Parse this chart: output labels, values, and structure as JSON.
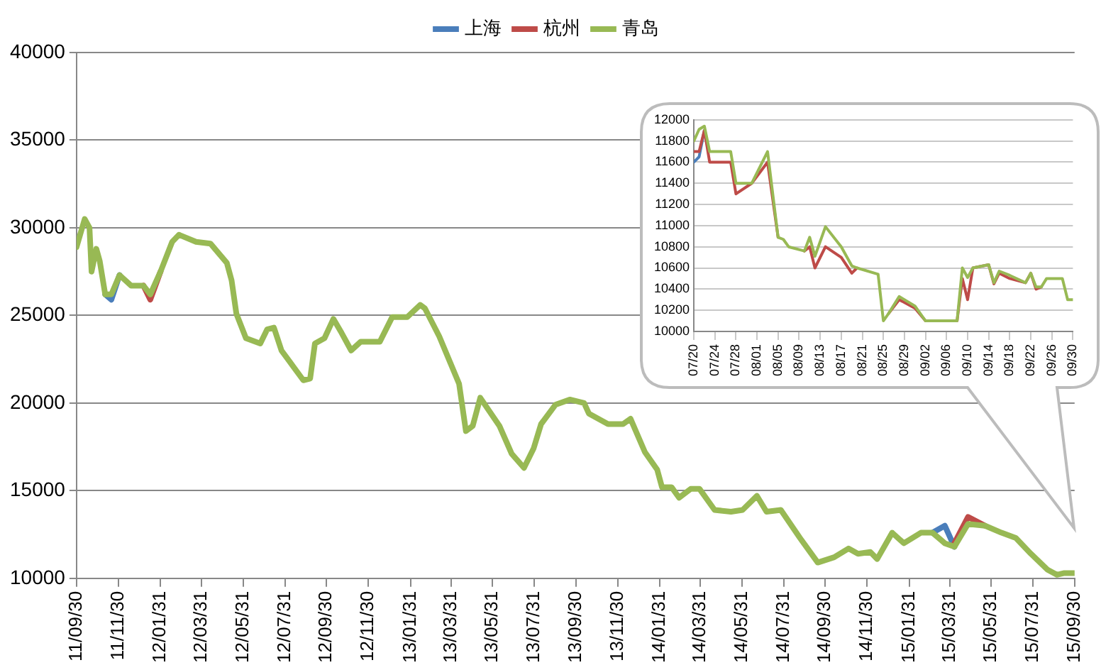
{
  "chart_data": [
    {
      "type": "line",
      "legend": "top",
      "marker": "none",
      "grid": "y",
      "x": [
        "2011-09-30",
        "2011-10-12",
        "2011-10-19",
        "2011-10-22",
        "2011-10-29",
        "2011-11-03",
        "2011-11-11",
        "2011-11-20",
        "2011-12-02",
        "2011-12-19",
        "2012-01-06",
        "2012-01-16",
        "2012-01-31",
        "2012-02-17",
        "2012-02-27",
        "2012-03-23",
        "2012-04-13",
        "2012-05-07",
        "2012-05-14",
        "2012-05-21",
        "2012-06-04",
        "2012-06-25",
        "2012-07-05",
        "2012-07-15",
        "2012-07-26",
        "2012-08-12",
        "2012-08-27",
        "2012-09-06",
        "2012-09-13",
        "2012-09-27",
        "2012-10-10",
        "2012-10-22",
        "2012-11-05",
        "2012-11-19",
        "2012-12-17",
        "2013-01-04",
        "2013-01-26",
        "2013-02-14",
        "2013-02-21",
        "2013-03-14",
        "2013-04-12",
        "2013-04-22",
        "2013-05-02",
        "2013-05-13",
        "2013-05-27",
        "2013-06-10",
        "2013-06-28",
        "2013-07-16",
        "2013-07-30",
        "2013-08-10",
        "2013-08-31",
        "2013-09-21",
        "2013-10-12",
        "2013-10-19",
        "2013-11-16",
        "2013-12-08",
        "2013-12-19",
        "2014-01-09",
        "2014-01-27",
        "2014-02-03",
        "2014-02-17",
        "2014-02-28",
        "2014-03-17",
        "2014-03-30",
        "2014-04-21",
        "2014-05-15",
        "2014-06-01",
        "2014-06-22",
        "2014-07-06",
        "2014-07-27",
        "2014-08-24",
        "2014-09-19",
        "2014-10-13",
        "2014-11-03",
        "2014-11-17",
        "2014-12-05",
        "2014-12-15",
        "2015-01-06",
        "2015-01-23",
        "2015-02-17",
        "2015-03-06",
        "2015-03-24",
        "2015-04-07",
        "2015-04-27",
        "2015-05-22",
        "2015-06-15",
        "2015-07-06",
        "2015-07-28",
        "2015-08-21",
        "2015-09-04",
        "2015-09-15",
        "2015-09-30"
      ],
      "series": [
        {
          "name": "上海",
          "color": "#4a7ebb",
          "values": [
            null,
            null,
            null,
            null,
            null,
            null,
            26200,
            25900,
            27300,
            null,
            null,
            null,
            null,
            null,
            null,
            null,
            null,
            null,
            null,
            null,
            null,
            null,
            null,
            null,
            null,
            null,
            null,
            null,
            null,
            null,
            null,
            null,
            null,
            null,
            null,
            null,
            null,
            null,
            null,
            null,
            null,
            null,
            null,
            null,
            null,
            null,
            null,
            null,
            null,
            null,
            null,
            null,
            null,
            null,
            null,
            null,
            null,
            null,
            null,
            null,
            null,
            null,
            null,
            null,
            null,
            null,
            null,
            null,
            null,
            null,
            null,
            null,
            null,
            null,
            null,
            null,
            null,
            null,
            null,
            null,
            12600,
            13000,
            11800,
            null,
            null,
            null,
            null,
            null,
            null,
            null,
            null,
            null
          ]
        },
        {
          "name": "杭州",
          "color": "#be4b48",
          "values": [
            null,
            null,
            null,
            null,
            null,
            null,
            null,
            null,
            null,
            null,
            26700,
            25900,
            27500,
            null,
            null,
            null,
            null,
            null,
            null,
            null,
            null,
            null,
            null,
            null,
            null,
            null,
            null,
            null,
            null,
            null,
            null,
            null,
            null,
            null,
            null,
            null,
            null,
            null,
            null,
            null,
            null,
            null,
            null,
            null,
            null,
            null,
            null,
            null,
            null,
            null,
            null,
            null,
            null,
            null,
            null,
            null,
            null,
            null,
            null,
            null,
            null,
            null,
            null,
            null,
            null,
            null,
            null,
            null,
            null,
            null,
            null,
            null,
            null,
            null,
            null,
            null,
            null,
            null,
            null,
            null,
            null,
            null,
            12000,
            13500,
            13000,
            null,
            null,
            null,
            null,
            null,
            null,
            null
          ]
        },
        {
          "name": "青岛",
          "color": "#98b954",
          "values": [
            28900,
            30500,
            30000,
            27500,
            28800,
            28100,
            26200,
            26200,
            27300,
            26700,
            26700,
            26200,
            27500,
            29200,
            29600,
            29200,
            29100,
            28000,
            27000,
            25100,
            23700,
            23400,
            24200,
            24300,
            23000,
            22100,
            21300,
            21400,
            23400,
            23700,
            24800,
            24000,
            23000,
            23500,
            23500,
            24900,
            24900,
            25600,
            25400,
            23800,
            21100,
            18400,
            18700,
            20300,
            19500,
            18700,
            17100,
            16300,
            17400,
            18800,
            19900,
            20200,
            20000,
            19400,
            18800,
            18800,
            19100,
            17200,
            16200,
            15200,
            15200,
            14600,
            15100,
            15100,
            13900,
            13800,
            13900,
            14700,
            13800,
            13900,
            12300,
            10900,
            11200,
            11700,
            11400,
            11500,
            11100,
            12600,
            12000,
            12600,
            12600,
            12000,
            11800,
            13100,
            13000,
            12600,
            12300,
            11400,
            10500,
            10200,
            10300,
            10300
          ]
        }
      ],
      "xlim": [
        "2011-09-30",
        "2015-09-30"
      ],
      "xticks": [
        {
          "value": "2011-09-30",
          "label": "11/09/30"
        },
        {
          "value": "2011-11-30",
          "label": "11/11/30"
        },
        {
          "value": "2012-01-31",
          "label": "12/01/31"
        },
        {
          "value": "2012-03-31",
          "label": "12/03/31"
        },
        {
          "value": "2012-05-31",
          "label": "12/05/31"
        },
        {
          "value": "2012-07-31",
          "label": "12/07/31"
        },
        {
          "value": "2012-09-30",
          "label": "12/09/30"
        },
        {
          "value": "2012-11-30",
          "label": "12/11/30"
        },
        {
          "value": "2013-01-31",
          "label": "13/01/31"
        },
        {
          "value": "2013-03-31",
          "label": "13/03/31"
        },
        {
          "value": "2013-05-31",
          "label": "13/05/31"
        },
        {
          "value": "2013-07-31",
          "label": "13/07/31"
        },
        {
          "value": "2013-09-30",
          "label": "13/09/30"
        },
        {
          "value": "2013-11-30",
          "label": "13/11/30"
        },
        {
          "value": "2014-01-31",
          "label": "14/01/31"
        },
        {
          "value": "2014-03-31",
          "label": "14/03/31"
        },
        {
          "value": "2014-05-31",
          "label": "14/05/31"
        },
        {
          "value": "2014-07-31",
          "label": "14/07/31"
        },
        {
          "value": "2014-09-30",
          "label": "14/09/30"
        },
        {
          "value": "2014-11-30",
          "label": "14/11/30"
        },
        {
          "value": "2015-01-31",
          "label": "15/01/31"
        },
        {
          "value": "2015-03-31",
          "label": "15/03/31"
        },
        {
          "value": "2015-05-31",
          "label": "15/05/31"
        },
        {
          "value": "2015-07-31",
          "label": "15/07/31"
        },
        {
          "value": "2015-09-30",
          "label": "15/09/30"
        }
      ],
      "ylim": [
        10000,
        40000
      ],
      "yticks": [
        10000,
        15000,
        20000,
        25000,
        30000,
        35000,
        40000
      ]
    },
    {
      "type": "line",
      "marker": "none",
      "grid": "y",
      "x": [
        "--07-20",
        "--07-21",
        "--07-22",
        "--07-23",
        "--07-27",
        "--07-28",
        "--07-31",
        "--08-03",
        "--08-05",
        "--08-06",
        "--08-07",
        "--08-10",
        "--08-11",
        "--08-12",
        "--08-14",
        "--08-17",
        "--08-19",
        "--08-20",
        "--08-24",
        "--08-25",
        "--08-26",
        "--08-28",
        "--08-31",
        "--09-02",
        "--09-08",
        "--09-09",
        "--09-10",
        "--09-11",
        "--09-14",
        "--09-15",
        "--09-16",
        "--09-18",
        "--09-21",
        "--09-22",
        "--09-23",
        "--09-24",
        "--09-25",
        "--09-28",
        "--09-29",
        "--09-30"
      ],
      "series": [
        {
          "color": "#4a7ebb",
          "values": [
            11600,
            11650,
            11900,
            null,
            null,
            null,
            null,
            null,
            null,
            null,
            null,
            null,
            null,
            null,
            null,
            null,
            null,
            null,
            null,
            null,
            null,
            null,
            null,
            null,
            null,
            null,
            null,
            null,
            null,
            null,
            null,
            null,
            null,
            null,
            null,
            null,
            null,
            null,
            null,
            null
          ]
        },
        {
          "color": "#be4b48",
          "values": [
            11700,
            11700,
            11900,
            11600,
            11600,
            11300,
            11400,
            11600,
            10890,
            null,
            null,
            10760,
            10800,
            10600,
            10800,
            10700,
            10550,
            10600,
            null,
            null,
            10170,
            10300,
            10220,
            10100,
            10100,
            10500,
            10300,
            10600,
            10630,
            10450,
            10550,
            10500,
            10460,
            10550,
            10400,
            10420,
            null,
            null,
            null,
            null
          ]
        },
        {
          "color": "#98b954",
          "values": [
            11800,
            11910,
            11940,
            11700,
            11700,
            11400,
            11400,
            11700,
            10890,
            10870,
            10800,
            10760,
            10890,
            10710,
            10990,
            10800,
            10620,
            10600,
            10540,
            10100,
            10170,
            10330,
            10240,
            10100,
            10100,
            10600,
            10510,
            10600,
            10630,
            10460,
            10570,
            10530,
            10460,
            10550,
            10420,
            10420,
            10500,
            10500,
            10300,
            10300
          ]
        }
      ],
      "xlim": [
        "--07-20",
        "--09-30"
      ],
      "xticks": [
        {
          "value": "--07-20",
          "label": "07/20"
        },
        {
          "value": "--07-24",
          "label": "07/24"
        },
        {
          "value": "--07-28",
          "label": "07/28"
        },
        {
          "value": "--08-01",
          "label": "08/01"
        },
        {
          "value": "--08-05",
          "label": "08/05"
        },
        {
          "value": "--08-09",
          "label": "08/09"
        },
        {
          "value": "--08-13",
          "label": "08/13"
        },
        {
          "value": "--08-17",
          "label": "08/17"
        },
        {
          "value": "--08-21",
          "label": "08/21"
        },
        {
          "value": "--08-25",
          "label": "08/25"
        },
        {
          "value": "--08-29",
          "label": "08/29"
        },
        {
          "value": "--09-02",
          "label": "09/02"
        },
        {
          "value": "--09-06",
          "label": "09/06"
        },
        {
          "value": "--09-10",
          "label": "09/10"
        },
        {
          "value": "--09-14",
          "label": "09/14"
        },
        {
          "value": "--09-18",
          "label": "09/18"
        },
        {
          "value": "--09-22",
          "label": "09/22"
        },
        {
          "value": "--09-26",
          "label": "09/26"
        },
        {
          "value": "--09-30",
          "label": "09/30"
        }
      ],
      "ylim": [
        10000,
        12000
      ],
      "yticks": [
        10000,
        10200,
        10400,
        10600,
        10800,
        11000,
        11200,
        11400,
        11600,
        11800,
        12000
      ]
    }
  ]
}
